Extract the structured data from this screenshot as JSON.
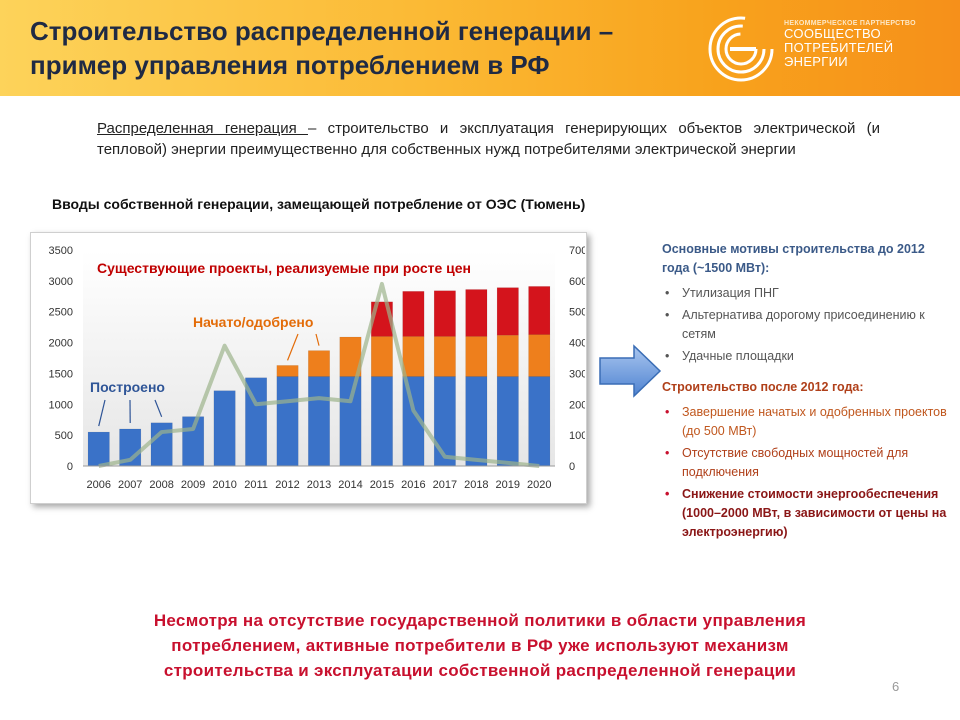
{
  "header": {
    "title_line1": "Строительство распределенной генерации –",
    "title_line2": "пример управления потреблением в РФ",
    "logo_small": "НЕКОММЕРЧЕСКОЕ ПАРТНЕРСТВО",
    "logo_line1": "СООБЩЕСТВО",
    "logo_line2": "ПОТРЕБИТЕЛЕЙ",
    "logo_line3": "ЭНЕРГИИ"
  },
  "definition": {
    "term": "Распределенная генерация ",
    "text": " – строительство и эксплуатация генерирующих объектов электрической (и тепловой) энергии  преимущественно для собственных нужд потребителями электрической энергии"
  },
  "chart_title": "Вводы собственной генерации, замещающей потребление от ОЭС (Тюмень)",
  "chart_data": {
    "type": "bar",
    "stacked": true,
    "categories": [
      "2006",
      "2007",
      "2008",
      "2009",
      "2010",
      "2011",
      "2012",
      "2013",
      "2014",
      "2015",
      "2016",
      "2017",
      "2018",
      "2019",
      "2020"
    ],
    "series": [
      {
        "name": "Построено",
        "color": "#3a72c8",
        "values": [
          550,
          600,
          700,
          800,
          1220,
          1430,
          1450,
          1450,
          1450,
          1450,
          1450,
          1450,
          1450,
          1450,
          1450
        ]
      },
      {
        "name": "Начато/одобрено",
        "color": "#ee7f1c",
        "values": [
          0,
          0,
          0,
          0,
          0,
          0,
          180,
          420,
          640,
          650,
          650,
          650,
          650,
          670,
          680
        ]
      },
      {
        "name": "Существующие проекты, реализуемые при росте цен",
        "color": "#d4141c",
        "values": [
          0,
          0,
          0,
          0,
          0,
          0,
          0,
          0,
          0,
          560,
          730,
          740,
          760,
          770,
          780
        ]
      }
    ],
    "secondary_line": {
      "color": "#9cb48b",
      "values": [
        0,
        20,
        110,
        120,
        390,
        200,
        210,
        220,
        210,
        590,
        180,
        30,
        20,
        10,
        0
      ]
    },
    "ylim_left": [
      0,
      3500
    ],
    "yticks_left": [
      0,
      500,
      1000,
      1500,
      2000,
      2500,
      3000,
      3500
    ],
    "ylim_right": [
      0,
      700
    ],
    "yticks_right": [
      0,
      100,
      200,
      300,
      400,
      500,
      600,
      700
    ],
    "grid": false,
    "annotations": {
      "built": "Построено",
      "started": "Начато/одобрено",
      "existing": "Существующие проекты, реализуемые при росте цен"
    }
  },
  "right_panel": {
    "section1": {
      "heading": "Основные мотивы строительства до 2012 года (~1500 МВт):",
      "items": [
        "Утилизация ПНГ",
        "Альтернатива дорогому присоединению к сетям",
        "Удачные площадки"
      ]
    },
    "section2": {
      "heading": "Строительство после 2012 года:",
      "items": [
        "Завершение начатых и одобренных проектов (до 500 МВт)",
        "Отсутствие свободных мощностей для подключения",
        "Снижение стоимости энергообеспечения (1000–2000 МВт, в зависимости от цены на электроэнергию)"
      ]
    },
    "bullet": "•"
  },
  "conclusion": {
    "line1": "Несмотря на отсутствие  государственной политики в области управления",
    "line2": "потреблением,  активные потребители в РФ уже используют  механизм",
    "line3": "строительства  и эксплуатации собственной распределенной генерации"
  },
  "page_number": "6",
  "colors": {
    "heading_blue": "#3b5a88",
    "heading_red": "#b0401a",
    "text_grey": "#555555",
    "accent_red": "#c8102e"
  }
}
